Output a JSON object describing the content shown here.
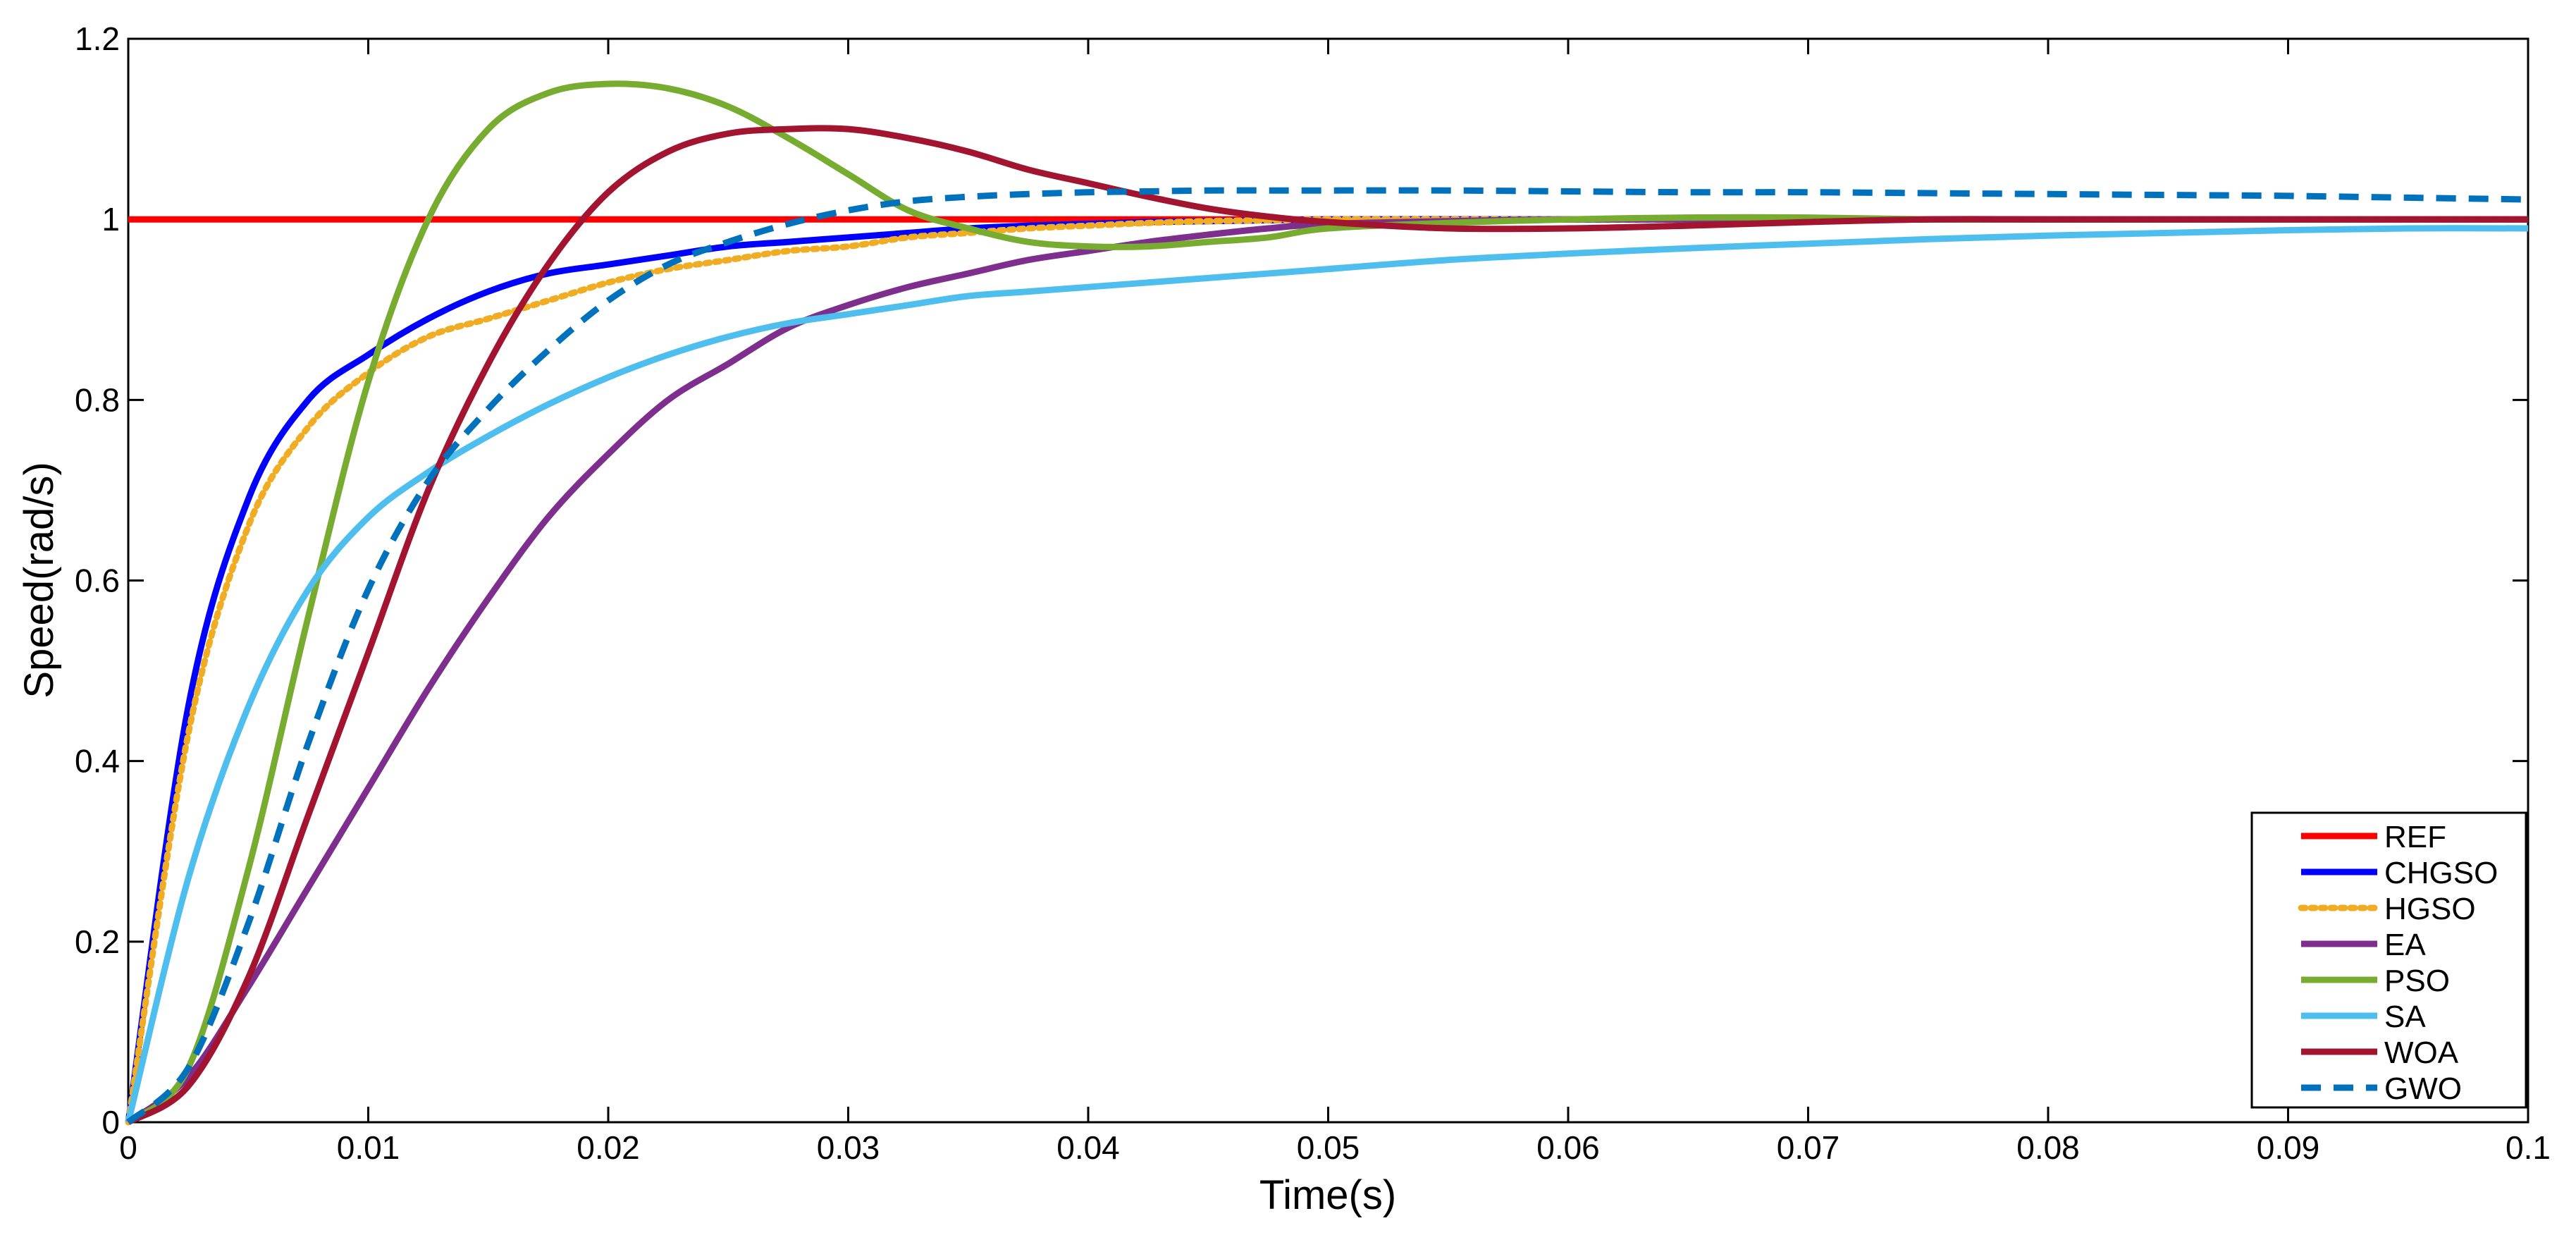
{
  "chart_data": {
    "type": "line",
    "title": "",
    "xlabel": "Time(s)",
    "ylabel": "Speed(rad/s)",
    "xlim": [
      0,
      0.1
    ],
    "ylim": [
      0,
      1.2
    ],
    "xticks": [
      "0",
      "0.01",
      "0.02",
      "0.03",
      "0.04",
      "0.05",
      "0.06",
      "0.07",
      "0.08",
      "0.09",
      "0.1"
    ],
    "yticks": [
      "0",
      "0.2",
      "0.4",
      "0.6",
      "0.8",
      "1",
      "1.2"
    ],
    "xtick_values": [
      0,
      0.01,
      0.02,
      0.03,
      0.04,
      0.05,
      0.06,
      0.07,
      0.08,
      0.09,
      0.1
    ],
    "ytick_values": [
      0,
      0.2,
      0.4,
      0.6,
      0.8,
      1,
      1.2
    ],
    "grid": false,
    "legend_position": "bottom-right",
    "x": [
      0,
      0.0025,
      0.005,
      0.0075,
      0.01,
      0.0125,
      0.015,
      0.0175,
      0.02,
      0.0225,
      0.025,
      0.0275,
      0.03,
      0.0325,
      0.035,
      0.0375,
      0.04,
      0.0425,
      0.045,
      0.0475,
      0.05,
      0.055,
      0.06,
      0.065,
      0.07,
      0.075,
      0.08,
      0.085,
      0.09,
      0.095,
      0.1
    ],
    "series": [
      {
        "name": "REF",
        "color": "#ff0000",
        "dash": "solid",
        "values": [
          1,
          1,
          1,
          1,
          1,
          1,
          1,
          1,
          1,
          1,
          1,
          1,
          1,
          1,
          1,
          1,
          1,
          1,
          1,
          1,
          1,
          1,
          1,
          1,
          1,
          1,
          1,
          1,
          1,
          1,
          1
        ]
      },
      {
        "name": "CHGSO",
        "color": "#0000ff",
        "dash": "solid",
        "values": [
          0,
          0.46,
          0.69,
          0.8,
          0.85,
          0.89,
          0.92,
          0.94,
          0.95,
          0.96,
          0.97,
          0.975,
          0.98,
          0.985,
          0.99,
          0.993,
          0.995,
          0.997,
          0.998,
          0.999,
          1.0,
          1.0,
          1.0,
          1.0,
          1.0,
          1.0,
          1.0,
          1.0,
          1.0,
          1.0,
          1.0
        ]
      },
      {
        "name": "HGSO",
        "color": "#f0ad24",
        "dash": "dotted",
        "values": [
          0,
          0.43,
          0.66,
          0.77,
          0.83,
          0.87,
          0.89,
          0.91,
          0.93,
          0.945,
          0.955,
          0.965,
          0.97,
          0.98,
          0.985,
          0.99,
          0.993,
          0.996,
          0.998,
          0.999,
          1.0,
          1.0,
          1.0,
          1.0,
          1.0,
          1.0,
          1.0,
          1.0,
          1.0,
          1.0,
          1.0
        ]
      },
      {
        "name": "EA",
        "color": "#7e2f8e",
        "dash": "solid",
        "values": [
          0,
          0.05,
          0.15,
          0.26,
          0.37,
          0.48,
          0.58,
          0.67,
          0.74,
          0.8,
          0.84,
          0.88,
          0.905,
          0.925,
          0.94,
          0.955,
          0.965,
          0.975,
          0.983,
          0.99,
          0.995,
          0.998,
          1.0,
          1.0,
          1.0,
          1.0,
          1.0,
          1.0,
          1.0,
          1.0,
          1.0
        ]
      },
      {
        "name": "PSO",
        "color": "#77ac30",
        "dash": "solid",
        "values": [
          0,
          0.06,
          0.28,
          0.56,
          0.82,
          1.0,
          1.1,
          1.14,
          1.15,
          1.145,
          1.125,
          1.09,
          1.05,
          1.01,
          0.99,
          0.975,
          0.97,
          0.97,
          0.975,
          0.98,
          0.99,
          0.996,
          1.0,
          1.002,
          1.002,
          1.0,
          1.0,
          1.0,
          1.0,
          1.0,
          1.0
        ]
      },
      {
        "name": "SA",
        "color": "#4dbeee",
        "dash": "solid",
        "values": [
          0,
          0.27,
          0.46,
          0.59,
          0.67,
          0.72,
          0.76,
          0.795,
          0.825,
          0.85,
          0.87,
          0.885,
          0.895,
          0.905,
          0.915,
          0.92,
          0.925,
          0.93,
          0.935,
          0.94,
          0.945,
          0.955,
          0.962,
          0.968,
          0.973,
          0.978,
          0.982,
          0.985,
          0.988,
          0.99,
          0.99
        ]
      },
      {
        "name": "WOA",
        "color": "#a2142f",
        "dash": "solid",
        "values": [
          0,
          0.04,
          0.16,
          0.34,
          0.52,
          0.7,
          0.84,
          0.95,
          1.03,
          1.075,
          1.095,
          1.1,
          1.1,
          1.09,
          1.075,
          1.055,
          1.04,
          1.025,
          1.012,
          1.003,
          0.997,
          0.99,
          0.99,
          0.993,
          0.997,
          1.0,
          1.0,
          1.0,
          1.0,
          1.0,
          1.0
        ]
      },
      {
        "name": "GWO",
        "color": "#0072bd",
        "dash": "dashed",
        "values": [
          0,
          0.06,
          0.22,
          0.42,
          0.59,
          0.71,
          0.79,
          0.855,
          0.91,
          0.95,
          0.975,
          0.995,
          1.01,
          1.02,
          1.025,
          1.028,
          1.03,
          1.031,
          1.032,
          1.032,
          1.032,
          1.032,
          1.031,
          1.03,
          1.03,
          1.029,
          1.028,
          1.027,
          1.026,
          1.024,
          1.022
        ]
      }
    ]
  }
}
